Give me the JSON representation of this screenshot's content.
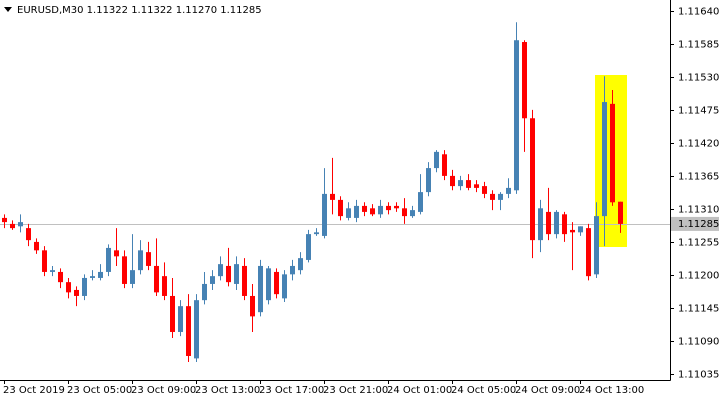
{
  "chart_data": {
    "type": "candlestick",
    "title": "EURUSD,M30  1.11322 1.11322 1.11270 1.11285",
    "categories": [
      "23 Oct 2019",
      null,
      null,
      null,
      null,
      null,
      null,
      null,
      "23 Oct 05:00",
      null,
      null,
      null,
      null,
      null,
      null,
      null,
      "23 Oct 09:00",
      null,
      null,
      null,
      null,
      null,
      null,
      null,
      "23 Oct 13:00",
      null,
      null,
      null,
      null,
      null,
      null,
      null,
      "23 Oct 17:00",
      null,
      null,
      null,
      null,
      null,
      null,
      null,
      "23 Oct 21:00",
      null,
      null,
      null,
      null,
      null,
      null,
      null,
      "24 Oct 01:00",
      null,
      null,
      null,
      null,
      null,
      null,
      null,
      "24 Oct 05:00",
      null,
      null,
      null,
      null,
      null,
      null,
      null,
      "24 Oct 09:00",
      null,
      null,
      null,
      null,
      null,
      null,
      null,
      "24 Oct 13:00",
      null,
      null,
      null,
      null,
      null
    ],
    "open": [
      1.11295,
      1.11285,
      1.11281,
      1.11278,
      1.11255,
      1.11241,
      1.11205,
      1.11205,
      1.11188,
      1.11175,
      1.11165,
      1.11195,
      1.11195,
      1.11205,
      1.11241,
      1.11231,
      1.11185,
      1.11208,
      1.11238,
      1.11215,
      1.11198,
      1.11165,
      1.11105,
      1.11148,
      1.11061,
      1.11158,
      1.11185,
      1.11198,
      1.11215,
      1.11185,
      1.11215,
      1.11165,
      1.11138,
      1.11158,
      1.11205,
      1.11161,
      1.11201,
      1.11208,
      1.11225,
      1.11268,
      1.11265,
      1.11335,
      1.11325,
      1.11295,
      1.11295,
      1.11315,
      1.11311,
      1.11301,
      1.11315,
      1.11315,
      1.11311,
      1.11298,
      1.11305,
      1.11338,
      1.11378,
      1.11401,
      1.11365,
      1.11348,
      1.11358,
      1.11351,
      1.11348,
      1.11335,
      1.11325,
      1.11335,
      1.11341,
      1.11588,
      1.11461,
      1.11258,
      1.11305,
      1.11268,
      1.11301,
      1.11275,
      1.11271,
      1.11278,
      1.11201,
      1.11298,
      1.11485,
      1.11322
    ],
    "high": [
      1.11301,
      1.11291,
      1.11301,
      1.11285,
      1.11261,
      1.11248,
      1.11215,
      1.11211,
      1.11195,
      1.11181,
      1.11201,
      1.11208,
      1.11218,
      1.11251,
      1.11278,
      1.11241,
      1.11268,
      1.11258,
      1.11255,
      1.11261,
      1.11221,
      1.11195,
      1.11158,
      1.11168,
      1.11168,
      1.11205,
      1.11208,
      1.11231,
      1.11245,
      1.11231,
      1.11228,
      1.11185,
      1.11225,
      1.11215,
      1.11211,
      1.11208,
      1.11225,
      1.11238,
      1.11275,
      1.11278,
      1.11378,
      1.11395,
      1.11331,
      1.11321,
      1.11325,
      1.11321,
      1.11318,
      1.11325,
      1.11321,
      1.11321,
      1.11328,
      1.11315,
      1.11368,
      1.11388,
      1.11408,
      1.11408,
      1.11375,
      1.11365,
      1.11368,
      1.11358,
      1.11355,
      1.11341,
      1.11338,
      1.11361,
      1.11621,
      1.11591,
      1.11475,
      1.11325,
      1.11345,
      1.11308,
      1.11305,
      1.11288,
      1.11281,
      1.11285,
      1.11321,
      1.11531,
      1.11508,
      1.11322
    ],
    "low": [
      1.11278,
      1.11275,
      1.11271,
      1.11248,
      1.11235,
      1.11198,
      1.11198,
      1.11178,
      1.11161,
      1.11148,
      1.11158,
      1.11191,
      1.11191,
      1.11198,
      1.11215,
      1.11178,
      1.11178,
      1.11201,
      1.11208,
      1.11165,
      1.11158,
      1.11095,
      1.11098,
      1.11055,
      1.11055,
      1.11151,
      1.11175,
      1.11191,
      1.11181,
      1.11175,
      1.11158,
      1.11105,
      1.11131,
      1.11151,
      1.11161,
      1.11155,
      1.11191,
      1.11201,
      1.11221,
      1.11265,
      1.11261,
      1.11301,
      1.11291,
      1.11291,
      1.11288,
      1.11298,
      1.11298,
      1.11295,
      1.11301,
      1.11305,
      1.11285,
      1.11295,
      1.11301,
      1.11331,
      1.11371,
      1.11358,
      1.11341,
      1.11341,
      1.11341,
      1.11338,
      1.11328,
      1.11308,
      1.11308,
      1.11328,
      1.11335,
      1.11405,
      1.11228,
      1.11238,
      1.11258,
      1.11261,
      1.11255,
      1.11208,
      1.11265,
      1.11191,
      1.11195,
      1.11248,
      1.11315,
      1.1127
    ],
    "close": [
      1.11288,
      1.11278,
      1.11288,
      1.11258,
      1.11241,
      1.11205,
      1.11208,
      1.11188,
      1.11171,
      1.11165,
      1.11195,
      1.11198,
      1.11205,
      1.11245,
      1.11231,
      1.11185,
      1.11208,
      1.11241,
      1.11215,
      1.11171,
      1.11165,
      1.11105,
      1.11148,
      1.11065,
      1.11158,
      1.11185,
      1.11198,
      1.11218,
      1.11188,
      1.11218,
      1.11165,
      1.11131,
      1.11215,
      1.11211,
      1.11168,
      1.11201,
      1.11215,
      1.11228,
      1.11268,
      1.11271,
      1.11335,
      1.11325,
      1.11298,
      1.11311,
      1.11315,
      1.11305,
      1.11301,
      1.11315,
      1.11308,
      1.11311,
      1.11298,
      1.11308,
      1.11338,
      1.11378,
      1.11405,
      1.11365,
      1.11348,
      1.11358,
      1.11345,
      1.11345,
      1.11335,
      1.11325,
      1.11335,
      1.11345,
      1.11591,
      1.11461,
      1.11258,
      1.11311,
      1.11268,
      1.11305,
      1.11268,
      1.11271,
      1.11281,
      1.11198,
      1.11298,
      1.11488,
      1.11321,
      1.11285
    ],
    "up_color": "#4682b4",
    "down_color": "#ff0000",
    "current_price": 1.11285,
    "ylim": [
      1.11025,
      1.11658
    ],
    "yticks": [
      {
        "value": 1.11035,
        "label": "1.11035"
      },
      {
        "value": 1.1109,
        "label": "1.11090"
      },
      1.11145,
      {
        "value": 1.112,
        "label": "1.11200"
      },
      1.11255,
      {
        "value": 1.1131,
        "label": "1.11310"
      },
      1.11365,
      {
        "value": 1.1142,
        "label": "1.11420"
      },
      1.11475,
      {
        "value": 1.1153,
        "label": "1.11530"
      },
      1.11585,
      {
        "value": 1.1164,
        "label": "1.11640"
      }
    ]
  }
}
